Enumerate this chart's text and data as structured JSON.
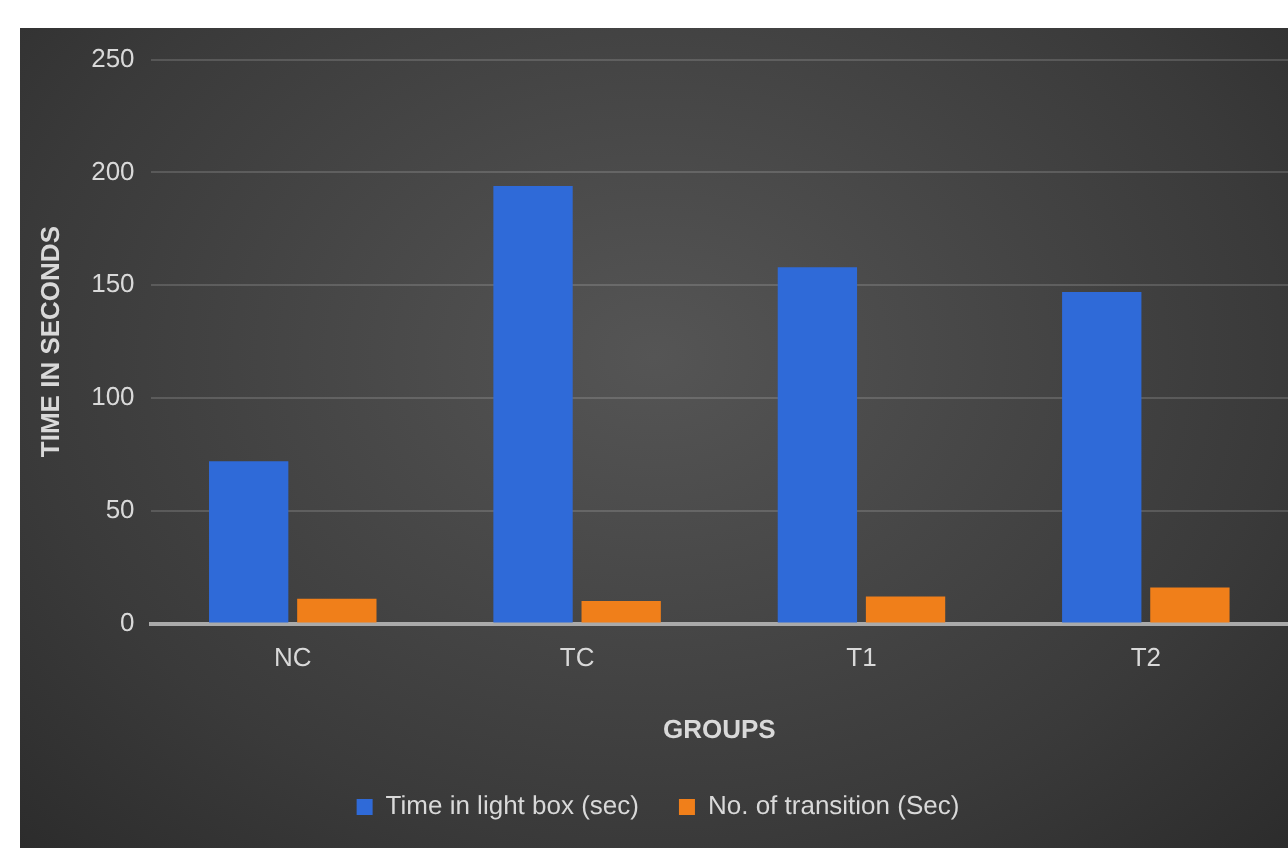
{
  "chart_data": {
    "type": "bar",
    "xlabel": "GROUPS",
    "ylabel": "TIME IN SECONDS",
    "categories": [
      "NC",
      "TC",
      "T1",
      "T2"
    ],
    "series": [
      {
        "name": "Time in light box (sec)",
        "color": "#2f6ad8",
        "values": [
          72,
          194,
          158,
          147
        ]
      },
      {
        "name": "No. of transition (Sec)",
        "color": "#f07f1a",
        "values": [
          11,
          10,
          12,
          16
        ]
      }
    ],
    "ylim": [
      0,
      250
    ],
    "yticks": [
      0,
      50,
      100,
      150,
      200,
      250
    ],
    "grid": "y",
    "legend": "bottom"
  }
}
